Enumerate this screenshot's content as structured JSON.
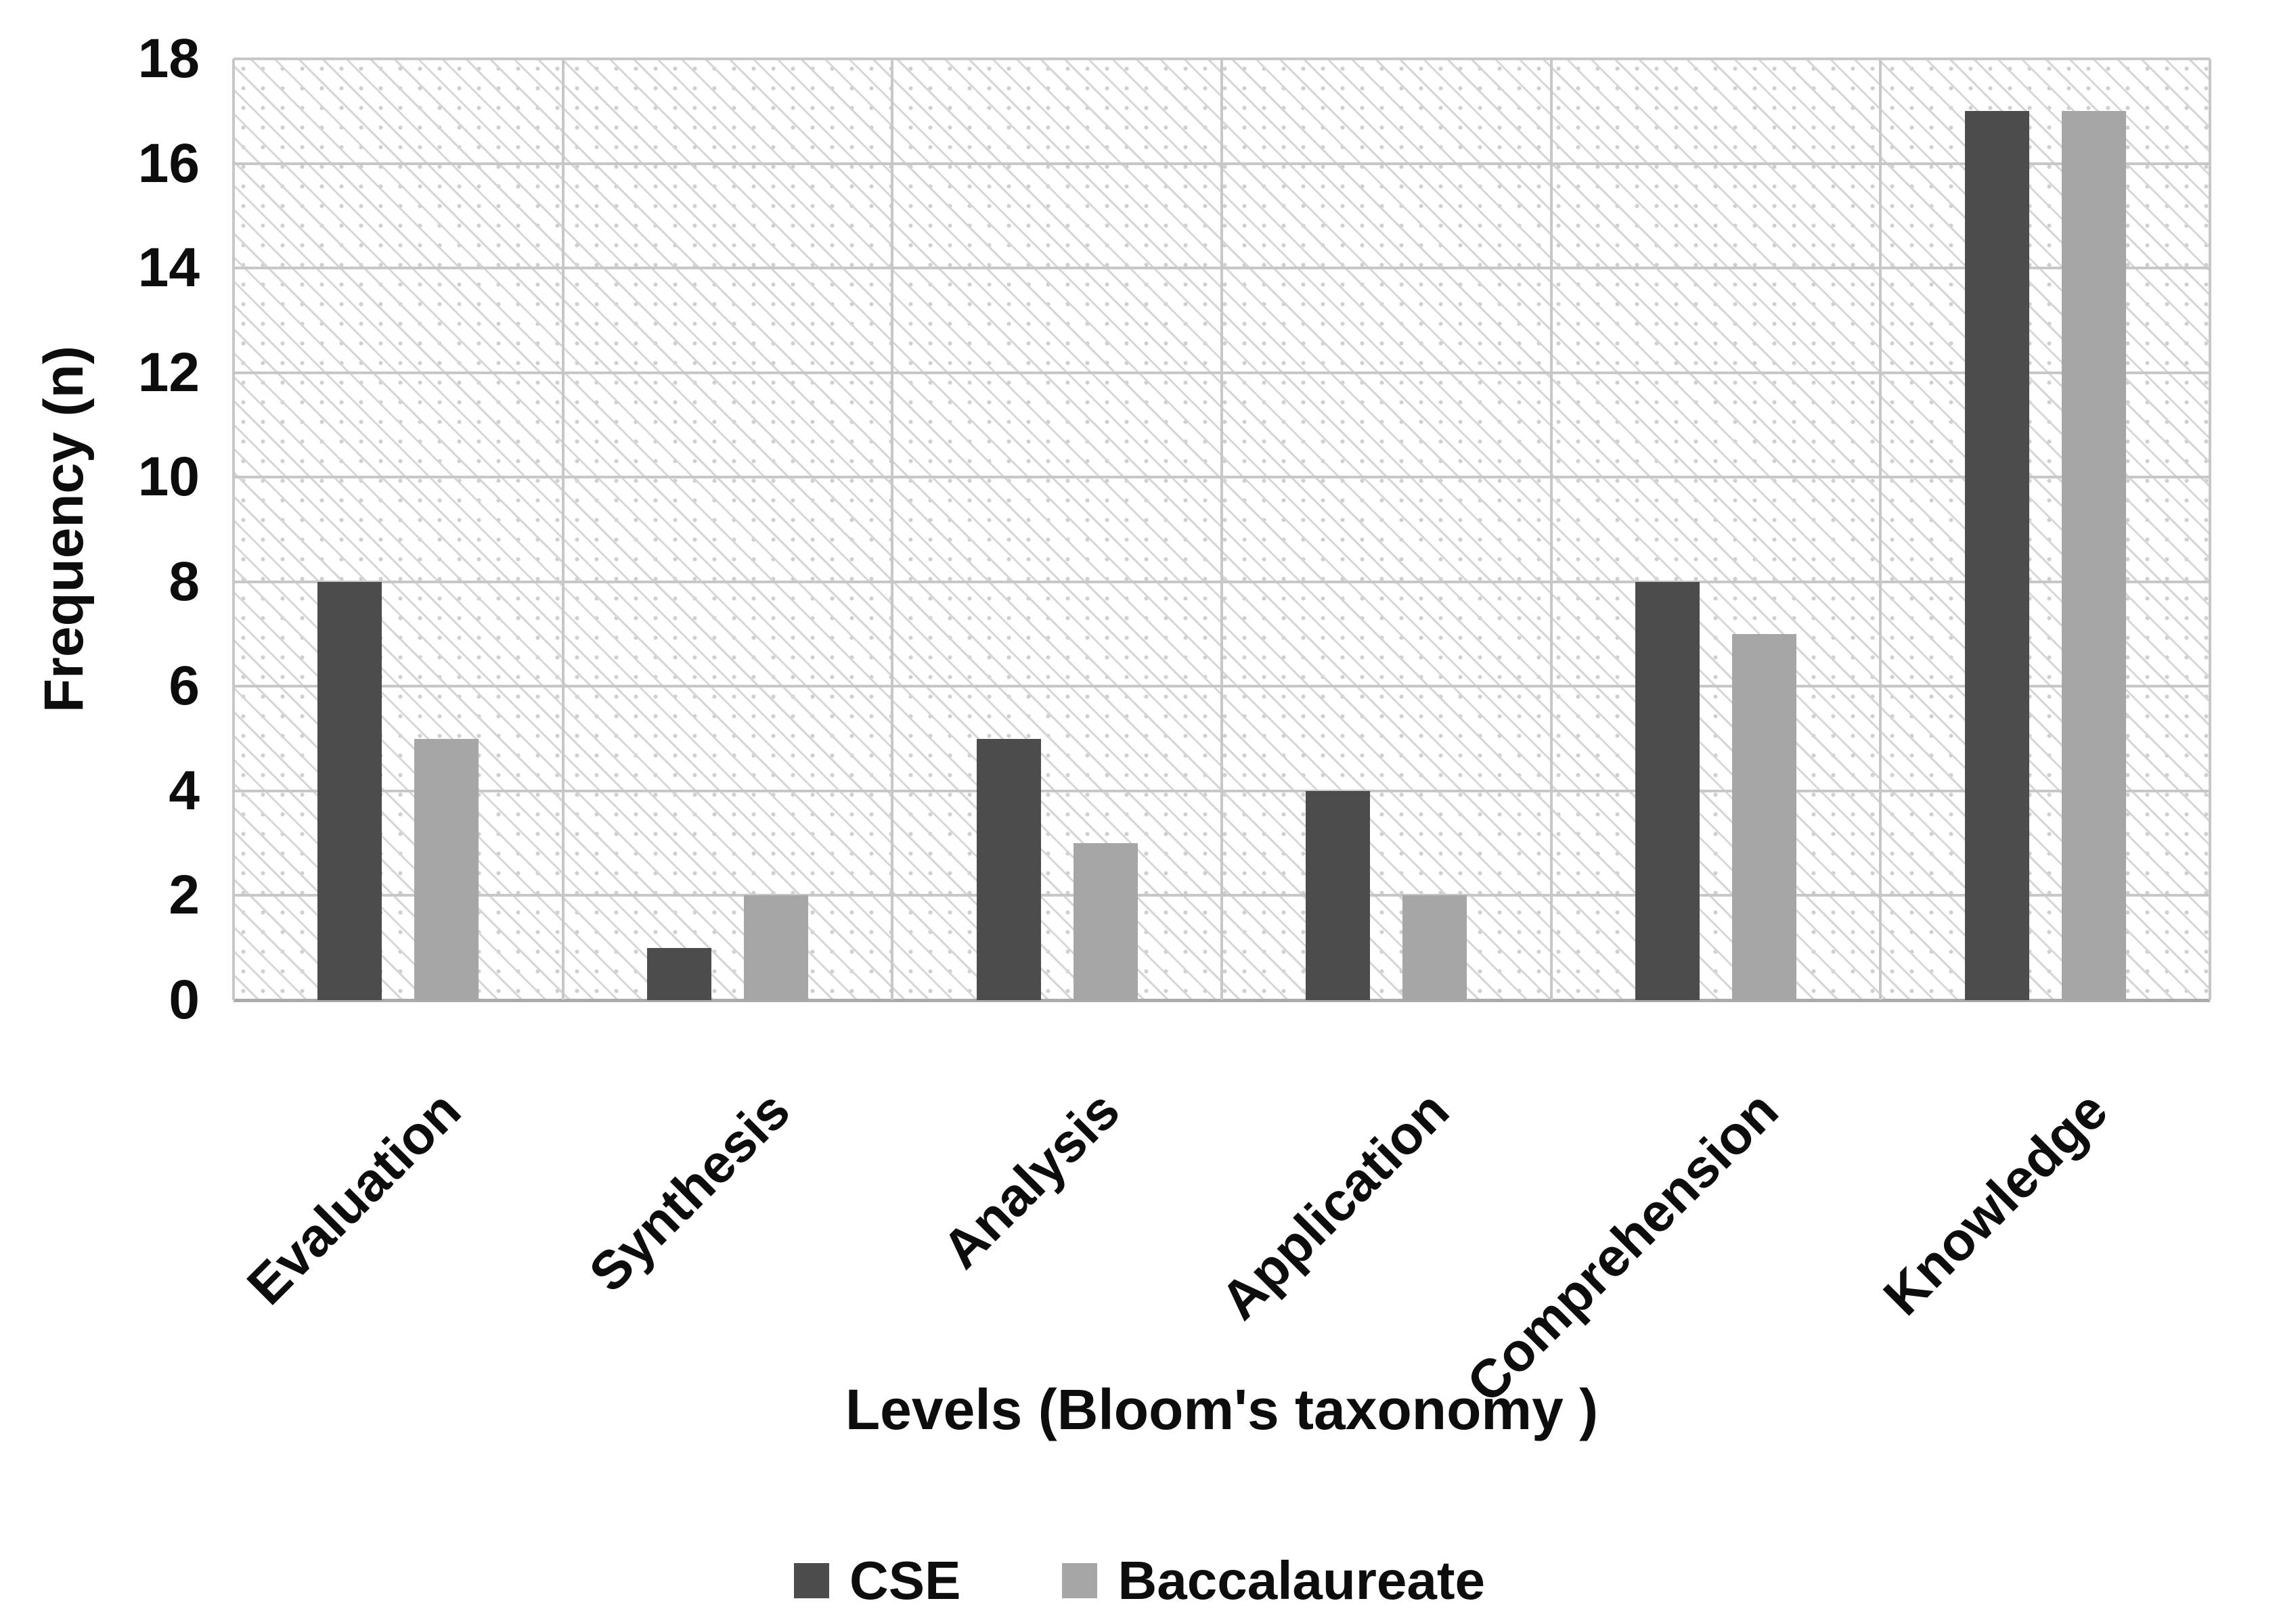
{
  "chart_data": {
    "type": "bar",
    "categories": [
      "Evaluation",
      "Synthesis",
      "Analysis",
      "Application",
      "Comprehension",
      "Knowledge"
    ],
    "series": [
      {
        "name": "CSE",
        "color": "#4c4c4c",
        "values": [
          8,
          1,
          5,
          4,
          8,
          17
        ]
      },
      {
        "name": "Baccalaureate",
        "color": "#a6a6a6",
        "values": [
          5,
          2,
          3,
          2,
          7,
          17
        ]
      }
    ],
    "title": "",
    "xlabel": "Levels (Bloom's taxonomy )",
    "ylabel": "Frequency (n)",
    "ylim": [
      0,
      18
    ],
    "ytick_step": 2,
    "y_ticks": [
      "0",
      "2",
      "4",
      "6",
      "8",
      "10",
      "12",
      "14",
      "16",
      "18"
    ],
    "grid": true,
    "gridline_color": "#c7c7c7",
    "axis_line_color": "#aaaaaa",
    "plot_pattern": "light-downward-diagonal-hatch",
    "legend_position": "bottom-center"
  }
}
